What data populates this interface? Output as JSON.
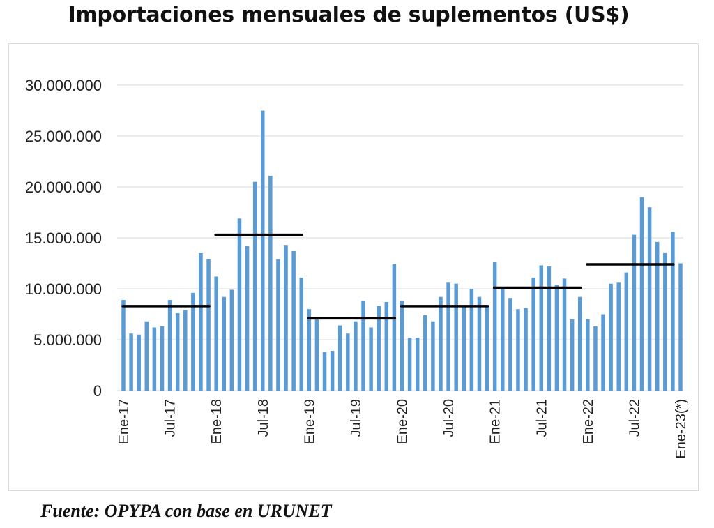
{
  "chart_data": {
    "type": "bar",
    "title": "Importaciones mensuales de suplementos (US$)",
    "xlabel": "",
    "ylabel": "",
    "ylim": [
      0,
      30000000
    ],
    "yticks": [
      0,
      5000000,
      10000000,
      15000000,
      20000000,
      25000000,
      30000000
    ],
    "ytick_labels": [
      "0",
      "5.000.000",
      "10.000.000",
      "15.000.000",
      "20.000.000",
      "25.000.000",
      "30.000.000"
    ],
    "grid": true,
    "bar_color": "#5b9bd5",
    "average_line_color": "#000000",
    "xtick_labels": [
      {
        "index": 0,
        "label": "Ene-17"
      },
      {
        "index": 6,
        "label": "Jul-17"
      },
      {
        "index": 12,
        "label": "Ene-18"
      },
      {
        "index": 18,
        "label": "Jul-18"
      },
      {
        "index": 24,
        "label": "Ene-19"
      },
      {
        "index": 30,
        "label": "Jul-19"
      },
      {
        "index": 36,
        "label": "Ene-20"
      },
      {
        "index": 42,
        "label": "Jul-20"
      },
      {
        "index": 48,
        "label": "Ene-21"
      },
      {
        "index": 54,
        "label": "Jul-21"
      },
      {
        "index": 60,
        "label": "Ene-22"
      },
      {
        "index": 66,
        "label": "Jul-22"
      },
      {
        "index": 72,
        "label": "Ene-23(*)"
      }
    ],
    "values": [
      8900000,
      5600000,
      5500000,
      6800000,
      6200000,
      6300000,
      8900000,
      7600000,
      7900000,
      9600000,
      13500000,
      12900000,
      11200000,
      9200000,
      9900000,
      16900000,
      14200000,
      20500000,
      27500000,
      21100000,
      12900000,
      14300000,
      13700000,
      11100000,
      8000000,
      7000000,
      3800000,
      3900000,
      6400000,
      5600000,
      6800000,
      8800000,
      6200000,
      8300000,
      8700000,
      12400000,
      8800000,
      5200000,
      5200000,
      7400000,
      6800000,
      9200000,
      10600000,
      10500000,
      8200000,
      10000000,
      9200000,
      8400000,
      12600000,
      10000000,
      9100000,
      8000000,
      8100000,
      11100000,
      12300000,
      12200000,
      10400000,
      11000000,
      7000000,
      9200000,
      7000000,
      6300000,
      7500000,
      10500000,
      10600000,
      11600000,
      15300000,
      19000000,
      18000000,
      14600000,
      13500000,
      15600000,
      12500000
    ],
    "annual_averages": [
      {
        "year": "2017",
        "start_index": 0,
        "end_index": 11,
        "value": 8300000
      },
      {
        "year": "2018",
        "start_index": 12,
        "end_index": 23,
        "value": 15300000
      },
      {
        "year": "2019",
        "start_index": 24,
        "end_index": 35,
        "value": 7100000
      },
      {
        "year": "2020",
        "start_index": 36,
        "end_index": 47,
        "value": 8300000
      },
      {
        "year": "2021",
        "start_index": 48,
        "end_index": 59,
        "value": 10100000
      },
      {
        "year": "2022",
        "start_index": 60,
        "end_index": 71,
        "value": 12400000
      }
    ]
  },
  "footer": {
    "source": "Fuente: OPYPA con base en URUNET"
  }
}
